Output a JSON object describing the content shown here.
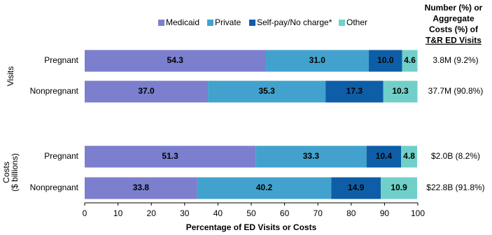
{
  "chart_data": {
    "type": "stacked-bar-horizontal",
    "categories": [
      "Pregnant",
      "Nonpregnant",
      "Pregnant",
      "Nonpregnant"
    ],
    "group_labels": [
      [
        "Visits"
      ],
      [
        "Costs",
        "($ billions)"
      ]
    ],
    "series": [
      {
        "name": "Medicaid",
        "color": "#7b7fcd",
        "label_color": "#ffffff",
        "values": [
          54.3,
          37.0,
          51.3,
          33.8
        ],
        "value_labels": [
          "54.3",
          "37.0",
          "51.3",
          "33.8"
        ]
      },
      {
        "name": "Private",
        "color": "#42a2cd",
        "label_color": "#000000",
        "values": [
          31.0,
          35.3,
          33.3,
          40.2
        ],
        "value_labels": [
          "31.0",
          "35.3",
          "33.3",
          "40.2"
        ]
      },
      {
        "name": "Self-pay/No charge*",
        "color": "#0e5ea7",
        "label_color": "#ffffff",
        "values": [
          10.0,
          17.3,
          10.4,
          14.9
        ],
        "value_labels": [
          "10.0",
          "17.3",
          "10.4",
          "14.9"
        ]
      },
      {
        "name": "Other",
        "color": "#70d0c9",
        "label_color": "#000000",
        "values": [
          4.6,
          10.3,
          4.8,
          10.9
        ],
        "value_labels": [
          "4.6",
          "10.3",
          "4.8",
          "10.9"
        ]
      }
    ],
    "right_header": [
      "Number (%)  or",
      "Aggregate",
      "Costs (%) of",
      "T&R ED Visits"
    ],
    "right_labels": [
      "3.8M (9.2%)",
      "37.7M (90.8%)",
      "$2.0B (8.2%)",
      "$22.8B (91.8%)"
    ],
    "xlabel": "Percentage of ED Visits or Costs",
    "xlim": [
      0,
      100
    ],
    "xticks": [
      0,
      10,
      20,
      30,
      40,
      50,
      60,
      70,
      80,
      90,
      100
    ]
  }
}
